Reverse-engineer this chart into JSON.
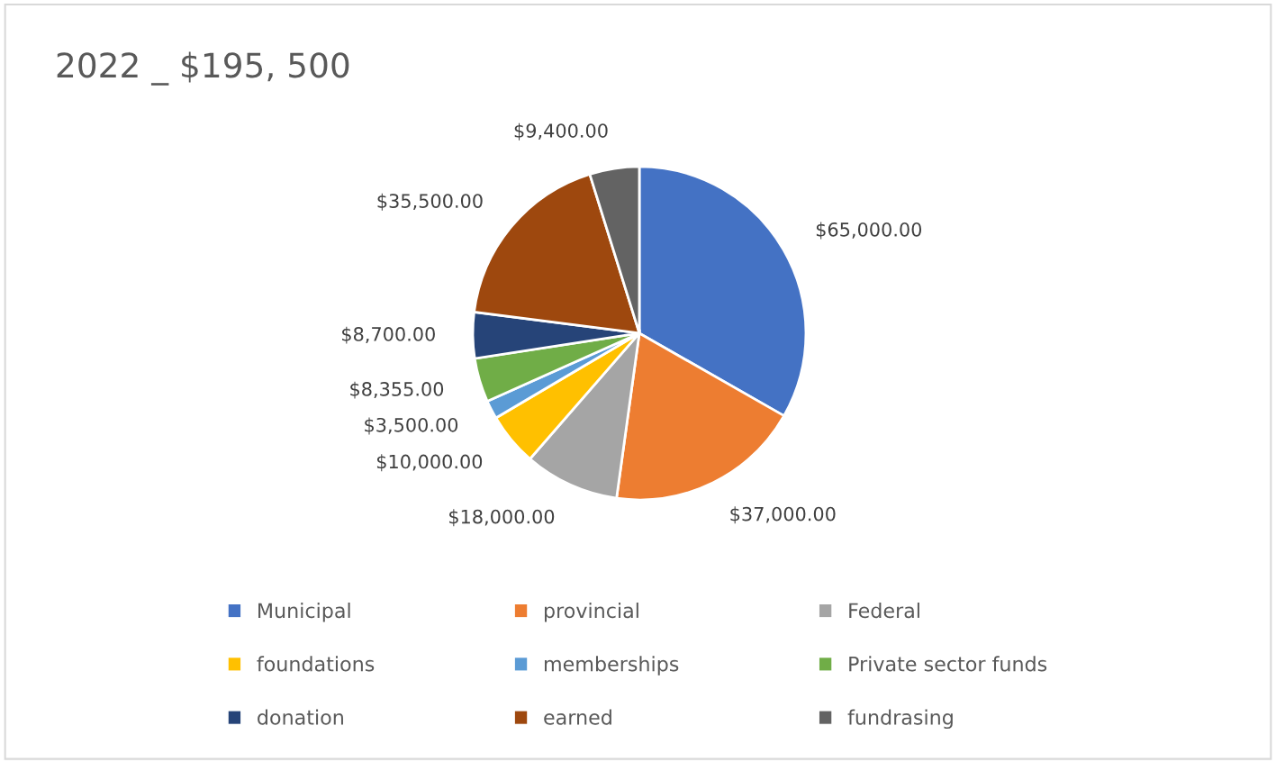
{
  "chart_data": {
    "type": "pie",
    "title": "2022 _ $195, 500",
    "categories": [
      "Municipal",
      "provincial",
      "Federal",
      "foundations",
      "memberships",
      "Private sector funds",
      "donation",
      "earned",
      "fundrasing"
    ],
    "values": [
      65000,
      37000,
      18000,
      10000,
      3500,
      8355,
      8700,
      35500,
      9400
    ],
    "colors": [
      "#4472c4",
      "#ed7d31",
      "#a5a5a5",
      "#ffc000",
      "#5b9bd5",
      "#70ad47",
      "#264478",
      "#9e480e",
      "#636363"
    ],
    "value_labels": [
      "$65,000.00",
      "$37,000.00",
      "$18,000.00",
      "$10,000.00",
      "$3,500.00",
      "$8,355.00",
      "$8,700.00",
      "$35,500.00",
      "$9,400.00"
    ],
    "legend": "bottom"
  }
}
